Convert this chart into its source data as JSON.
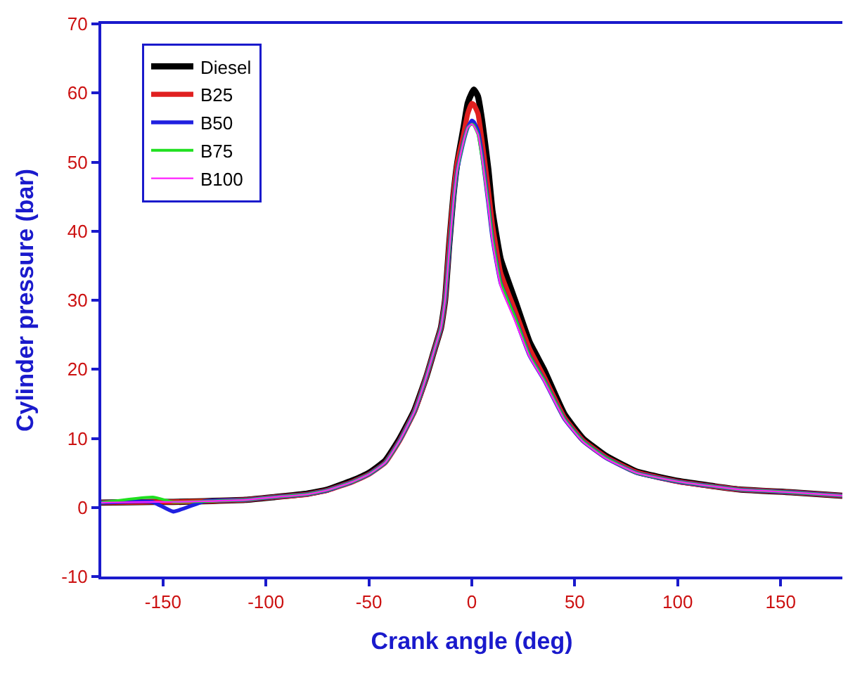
{
  "chart_data": {
    "type": "line",
    "xlabel": "Crank angle (deg)",
    "ylabel": "Cylinder pressure (bar)",
    "x": [
      -180,
      -155,
      -145,
      -130,
      -110,
      -96,
      -80,
      -70,
      -58,
      -50,
      -42,
      -35,
      -28,
      -22,
      -18,
      -15,
      -13,
      -11,
      -9,
      -7,
      -4,
      -2,
      0,
      1,
      3,
      5,
      8,
      10,
      14,
      21,
      28,
      35,
      45,
      54,
      65,
      80,
      101,
      130,
      155,
      180
    ],
    "series": [
      {
        "name": "Diesel",
        "color": "#000000",
        "values": [
          0.7,
          0.8,
          0.8,
          0.9,
          1.1,
          1.5,
          2.0,
          2.6,
          3.9,
          5.0,
          6.8,
          10,
          14,
          19,
          23,
          26,
          30,
          38,
          45,
          50,
          55,
          58.5,
          60,
          60.5,
          59.5,
          56,
          49,
          43,
          36,
          30,
          24,
          20,
          13.5,
          10,
          7.5,
          5.2,
          3.8,
          2.6,
          2.2,
          1.7
        ]
      },
      {
        "name": "B25",
        "color": "#e02020",
        "values": [
          0.7,
          0.8,
          0.8,
          0.9,
          1.1,
          1.5,
          1.9,
          2.5,
          3.7,
          4.8,
          6.5,
          9.7,
          13.8,
          19,
          23,
          26,
          30,
          38,
          45,
          50,
          54,
          57,
          58.5,
          58.3,
          57,
          53,
          46,
          41,
          34,
          28.5,
          23,
          19,
          13,
          9.7,
          7.3,
          5.1,
          3.7,
          2.6,
          2.2,
          1.7
        ]
      },
      {
        "name": "B50",
        "color": "#2020e0",
        "values": [
          0.7,
          0.8,
          -0.6,
          0.9,
          1.1,
          1.5,
          1.9,
          2.5,
          3.7,
          4.8,
          6.5,
          9.7,
          13.8,
          19,
          23,
          26,
          30,
          37,
          44,
          49,
          53,
          55,
          56,
          55.8,
          54.5,
          51,
          44,
          39,
          32.5,
          27.5,
          22,
          18.5,
          12.8,
          9.6,
          7.2,
          5.0,
          3.7,
          2.6,
          2.2,
          1.7
        ]
      },
      {
        "name": "B75",
        "color": "#20e020",
        "values": [
          0.7,
          1.5,
          0.8,
          0.9,
          1.1,
          1.5,
          1.9,
          2.5,
          3.7,
          4.8,
          6.5,
          9.7,
          13.8,
          19,
          23,
          26,
          30,
          37,
          44,
          49,
          53,
          55,
          55.5,
          55.3,
          54,
          50.5,
          44,
          39,
          32.5,
          27.5,
          22,
          18.5,
          12.8,
          9.6,
          7.2,
          5.0,
          3.7,
          2.6,
          2.2,
          1.7
        ]
      },
      {
        "name": "B100",
        "color": "#ff20ff",
        "values": [
          0.7,
          0.8,
          0.8,
          0.9,
          1.1,
          1.5,
          1.9,
          2.5,
          3.7,
          4.8,
          6.5,
          9.7,
          13.8,
          19,
          23,
          26,
          30,
          37,
          44,
          49,
          53,
          55,
          55.5,
          55.2,
          54,
          50.5,
          43.5,
          38.5,
          32,
          27,
          21.8,
          18.3,
          12.7,
          9.5,
          7.1,
          5.0,
          3.7,
          2.6,
          2.2,
          1.7
        ]
      }
    ],
    "xlim": [
      -180,
      180
    ],
    "xticks": [
      -150,
      -100,
      -50,
      0,
      50,
      100,
      150
    ],
    "ylim": [
      -10,
      70
    ],
    "yticks": [
      -10,
      0,
      10,
      20,
      30,
      40,
      50,
      60,
      70
    ],
    "legend": "top left",
    "marker": "none",
    "line_style": "solid"
  }
}
